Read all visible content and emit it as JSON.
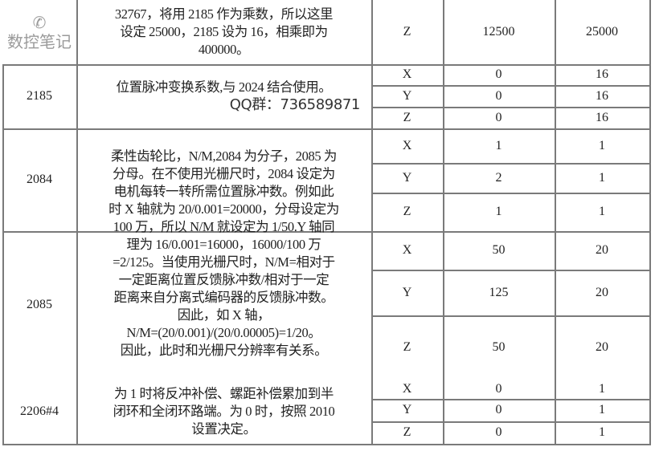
{
  "rows": [
    {
      "param": "",
      "desc": [
        "32767，将用 2185 作为乘数，所以这里",
        "设定 25000，2185 设为 16，相乘即为",
        "400000。"
      ],
      "axes": [
        {
          "axis": "Z",
          "a": "12500",
          "b": "25000"
        }
      ]
    },
    {
      "param": "2185",
      "desc": [
        "位置脉冲变换系数,与 2024 结合使用。"
      ],
      "qq": "QQ群：736589871",
      "axes": [
        {
          "axis": "X",
          "a": "0",
          "b": "16"
        },
        {
          "axis": "Y",
          "a": "0",
          "b": "16"
        },
        {
          "axis": "Z",
          "a": "0",
          "b": "16"
        }
      ]
    },
    {
      "param": "2084",
      "axes": [
        {
          "axis": "X",
          "a": "1",
          "b": "1"
        },
        {
          "axis": "Y",
          "a": "2",
          "b": "1"
        },
        {
          "axis": "Z",
          "a": "1",
          "b": "1"
        }
      ]
    },
    {
      "param": "2085",
      "axes": [
        {
          "axis": "X",
          "a": "50",
          "b": "20"
        },
        {
          "axis": "Y",
          "a": "125",
          "b": "20"
        },
        {
          "axis": "Z",
          "a": "50",
          "b": "20"
        }
      ]
    },
    {
      "param": "2206#4",
      "desc": [
        "为 1 时将反冲补偿、螺距补偿累加到半",
        "闭环和全闭环路端。为 0 时，按照 2010",
        "设置决定。"
      ],
      "axes": [
        {
          "axis": "X",
          "a": "0",
          "b": "1"
        },
        {
          "axis": "Y",
          "a": "0",
          "b": "1"
        },
        {
          "axis": "Z",
          "a": "0",
          "b": "1"
        }
      ]
    }
  ],
  "merged_desc": [
    "柔性齿轮比，N/M,2084 为分子，2085 为",
    "分母。在不使用光栅尺时，2084 设定为",
    "电机每转一转所需位置脉冲数。例如此",
    "时 X 轴就为 20/0.001=20000，分母设定为",
    "100 万，所以 N/M 就设定为 1/50.Y 轴同",
    "理为 16/0.001=16000，16000/100 万",
    "=2/125。当使用光栅尺时，N/M=相对于",
    "一定距离位置反馈脉冲数/相对于一定",
    "距离来自分离式编码器的反馈脉冲数。",
    "因此，如 X 轴，",
    "N/M=(20/0.001)/(20/0.00005)=1/20。",
    "因此，此时和光栅尺分辨率有关系。"
  ],
  "watermark": "数控笔记"
}
